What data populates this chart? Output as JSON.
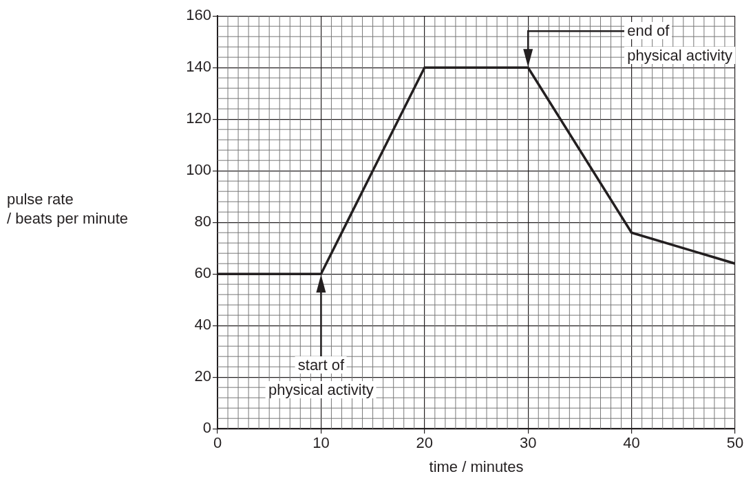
{
  "chart_data": {
    "type": "line",
    "xlabel": "time / minutes",
    "ylabel": "pulse rate\n/ beats per minute",
    "x": [
      0,
      10,
      20,
      30,
      40,
      50
    ],
    "series": [
      {
        "color": "#231f20",
        "values": [
          60,
          60,
          140,
          140,
          76,
          64
        ]
      }
    ],
    "xlim": [
      0,
      50
    ],
    "xticks": [
      0,
      10,
      20,
      30,
      40,
      50
    ],
    "ylim": [
      0,
      160
    ],
    "yticks": [
      0,
      20,
      40,
      60,
      80,
      100,
      120,
      140,
      160
    ],
    "grid": true,
    "legend": false,
    "marker": "none",
    "line_style": "solid",
    "annotations": [
      "start of\nphysical activity",
      "end of\nphysical activity"
    ]
  }
}
